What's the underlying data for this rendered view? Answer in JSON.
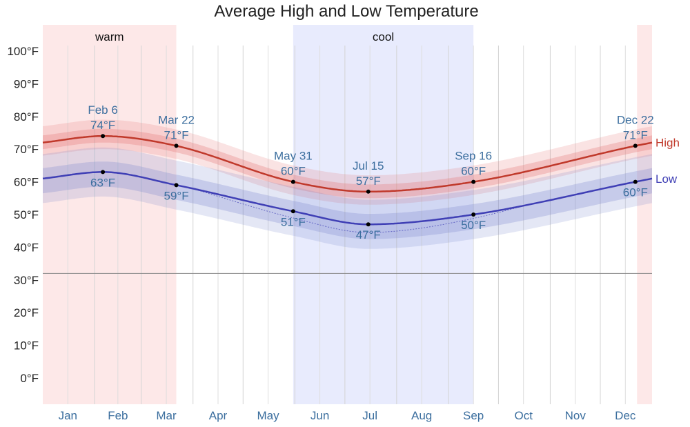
{
  "chart_data": {
    "type": "line",
    "title": "Average High and Low Temperature",
    "ylim": [
      -8,
      108
    ],
    "y_ticks": [
      {
        "value": 100,
        "label": "100°F"
      },
      {
        "value": 90,
        "label": "90°F"
      },
      {
        "value": 80,
        "label": "80°F"
      },
      {
        "value": 70,
        "label": "70°F"
      },
      {
        "value": 60,
        "label": "60°F"
      },
      {
        "value": 50,
        "label": "50°F"
      },
      {
        "value": 40,
        "label": "40°F"
      },
      {
        "value": 30,
        "label": "30°F"
      },
      {
        "value": 20,
        "label": "20°F"
      },
      {
        "value": 10,
        "label": "10°F"
      },
      {
        "value": 0,
        "label": "0°F"
      }
    ],
    "freezing_line": 32,
    "xlim": [
      1,
      366
    ],
    "months": [
      {
        "label": "Jan",
        "center_day": 16,
        "start_day": 1
      },
      {
        "label": "Feb",
        "center_day": 46,
        "start_day": 32
      },
      {
        "label": "Mar",
        "center_day": 75,
        "start_day": 60
      },
      {
        "label": "Apr",
        "center_day": 106,
        "start_day": 91
      },
      {
        "label": "May",
        "center_day": 136,
        "start_day": 121
      },
      {
        "label": "Jun",
        "center_day": 167,
        "start_day": 152
      },
      {
        "label": "Jul",
        "center_day": 197,
        "start_day": 182
      },
      {
        "label": "Aug",
        "center_day": 228,
        "start_day": 213
      },
      {
        "label": "Sep",
        "center_day": 259,
        "start_day": 244
      },
      {
        "label": "Oct",
        "center_day": 289,
        "start_day": 274
      },
      {
        "label": "Nov",
        "center_day": 320,
        "start_day": 305
      },
      {
        "label": "Dec",
        "center_day": 350,
        "start_day": 335
      }
    ],
    "seasons": [
      {
        "label": "warm",
        "start_day": 1,
        "end_day": 81,
        "color": "#fde8e8"
      },
      {
        "label": "",
        "start_day": 357,
        "end_day": 366,
        "color": "#fde8e8"
      },
      {
        "label": "cool",
        "start_day": 151,
        "end_day": 259,
        "color": "#e8ebfd"
      }
    ],
    "series": [
      {
        "name": "High",
        "color": "#c0392b",
        "band_color": "#e57373",
        "x": [
          1,
          37,
          81,
          151,
          196,
          259,
          356,
          366
        ],
        "values": [
          72,
          74,
          71,
          60,
          57,
          60,
          71,
          72
        ]
      },
      {
        "name": "Low",
        "color": "#3f3fb5",
        "band_color": "#7986cb",
        "x": [
          1,
          37,
          81,
          151,
          196,
          259,
          356,
          366
        ],
        "values": [
          61,
          63,
          59,
          51,
          47,
          50,
          60,
          61
        ]
      }
    ],
    "annotations": [
      {
        "day": 37,
        "value": 74,
        "series": "High",
        "date": "Feb 6",
        "label": "74°F",
        "position": "above"
      },
      {
        "day": 81,
        "value": 71,
        "series": "High",
        "date": "Mar 22",
        "label": "71°F",
        "position": "above"
      },
      {
        "day": 151,
        "value": 60,
        "series": "High",
        "date": "May 31",
        "label": "60°F",
        "position": "above"
      },
      {
        "day": 196,
        "value": 57,
        "series": "High",
        "date": "Jul 15",
        "label": "57°F",
        "position": "above"
      },
      {
        "day": 259,
        "value": 60,
        "series": "High",
        "date": "Sep 16",
        "label": "60°F",
        "position": "above"
      },
      {
        "day": 356,
        "value": 71,
        "series": "High",
        "date": "Dec 22",
        "label": "71°F",
        "position": "above"
      },
      {
        "day": 37,
        "value": 63,
        "series": "Low",
        "date": "",
        "label": "63°F",
        "position": "below"
      },
      {
        "day": 81,
        "value": 59,
        "series": "Low",
        "date": "",
        "label": "59°F",
        "position": "below"
      },
      {
        "day": 151,
        "value": 51,
        "series": "Low",
        "date": "",
        "label": "51°F",
        "position": "below"
      },
      {
        "day": 196,
        "value": 47,
        "series": "Low",
        "date": "",
        "label": "47°F",
        "position": "below"
      },
      {
        "day": 259,
        "value": 50,
        "series": "Low",
        "date": "",
        "label": "50°F",
        "position": "below"
      },
      {
        "day": 356,
        "value": 60,
        "series": "Low",
        "date": "",
        "label": "60°F",
        "position": "below"
      }
    ],
    "legend": [
      {
        "label": "High",
        "series": "High"
      },
      {
        "label": "Low",
        "series": "Low"
      }
    ]
  }
}
